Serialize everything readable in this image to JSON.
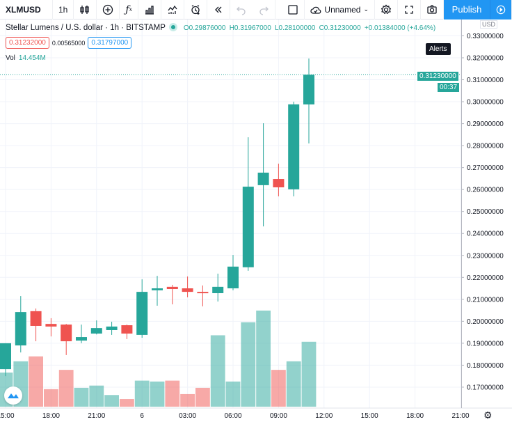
{
  "toolbar": {
    "symbol": "XLMUSD",
    "interval": "1h",
    "layout_name": "Unnamed",
    "publish_label": "Publish",
    "icons": [
      "bar-style-icon",
      "indicators-add-icon",
      "fx-icon",
      "financials-icon",
      "compare-icon",
      "alert-icon",
      "replay-icon",
      "undo-icon",
      "redo-icon",
      "layout-square-icon",
      "cloud-save-icon",
      "settings-icon",
      "fullscreen-icon",
      "camera-icon",
      "play-icon"
    ]
  },
  "legend": {
    "title": "Stellar Lumens / U.S. dollar · 1h · BITSTAMP",
    "open": "O0.29876000",
    "high": "H0.31967000",
    "low": "L0.28100000",
    "close": "C0.31230000",
    "change": "+0.01384000 (+4.64%)",
    "bid": "0.31232000",
    "spread": "0.00565000",
    "ask": "0.31797000",
    "vol_label": "Vol",
    "vol_value": "14.454M"
  },
  "price_axis": {
    "currency": "USD",
    "alerts_label": "Alerts",
    "last_price": "0.31230000",
    "countdown": "00:37"
  },
  "colors": {
    "up": "#26a69a",
    "down": "#ef5350",
    "accent": "#2196f3"
  },
  "chart_data": {
    "type": "candlestick",
    "interval": "1h",
    "ylim": [
      0.163,
      0.335
    ],
    "y_ticks": [
      0.33,
      0.32,
      0.31,
      0.3,
      0.29,
      0.28,
      0.27,
      0.26,
      0.25,
      0.24,
      0.23,
      0.22,
      0.21,
      0.2,
      0.19,
      0.18,
      0.17
    ],
    "x_tick_labels": [
      "15:00",
      "18:00",
      "21:00",
      "6",
      "03:00",
      "06:00",
      "09:00",
      "12:00",
      "15:00",
      "18:00",
      "21:00"
    ],
    "grid": true,
    "candles": [
      {
        "t": "15:00",
        "o": 0.1782,
        "h": 0.19,
        "l": 0.175,
        "c": 0.19,
        "v": 7.6
      },
      {
        "t": "16:00",
        "o": 0.189,
        "h": 0.2115,
        "l": 0.1858,
        "c": 0.2042,
        "v": 10.1
      },
      {
        "t": "17:00",
        "o": 0.2046,
        "h": 0.2058,
        "l": 0.1909,
        "c": 0.1979,
        "v": 11.2
      },
      {
        "t": "18:00",
        "o": 0.1988,
        "h": 0.2014,
        "l": 0.1931,
        "c": 0.1976,
        "v": 3.9
      },
      {
        "t": "19:00",
        "o": 0.1985,
        "h": 0.1988,
        "l": 0.1846,
        "c": 0.1909,
        "v": 8.2
      },
      {
        "t": "20:00",
        "o": 0.1912,
        "h": 0.1985,
        "l": 0.19,
        "c": 0.1928,
        "v": 4.2
      },
      {
        "t": "21:00",
        "o": 0.1944,
        "h": 0.2004,
        "l": 0.194,
        "c": 0.1969,
        "v": 4.7
      },
      {
        "t": "22:00",
        "o": 0.196,
        "h": 0.1998,
        "l": 0.1938,
        "c": 0.1976,
        "v": 2.6
      },
      {
        "t": "23:00",
        "o": 0.1982,
        "h": 0.1985,
        "l": 0.1919,
        "c": 0.1944,
        "v": 1.7
      },
      {
        "t": "00:00",
        "o": 0.1938,
        "h": 0.2191,
        "l": 0.1925,
        "c": 0.2134,
        "v": 5.8
      },
      {
        "t": "01:00",
        "o": 0.2141,
        "h": 0.2207,
        "l": 0.2071,
        "c": 0.215,
        "v": 5.6
      },
      {
        "t": "02:00",
        "o": 0.2157,
        "h": 0.2166,
        "l": 0.2077,
        "c": 0.2147,
        "v": 5.8
      },
      {
        "t": "03:00",
        "o": 0.215,
        "h": 0.2204,
        "l": 0.2109,
        "c": 0.2134,
        "v": 2.8
      },
      {
        "t": "04:00",
        "o": 0.2134,
        "h": 0.2163,
        "l": 0.2068,
        "c": 0.2128,
        "v": 4.2
      },
      {
        "t": "05:00",
        "o": 0.2128,
        "h": 0.2217,
        "l": 0.209,
        "c": 0.2157,
        "v": 15.9
      },
      {
        "t": "06:00",
        "o": 0.215,
        "h": 0.2302,
        "l": 0.2141,
        "c": 0.2249,
        "v": 5.6
      },
      {
        "t": "07:00",
        "o": 0.2246,
        "h": 0.2838,
        "l": 0.223,
        "c": 0.2613,
        "v": 18.8
      },
      {
        "t": "08:00",
        "o": 0.262,
        "h": 0.2902,
        "l": 0.2432,
        "c": 0.2677,
        "v": 21.4
      },
      {
        "t": "09:00",
        "o": 0.2648,
        "h": 0.2718,
        "l": 0.2569,
        "c": 0.261,
        "v": 8.2
      },
      {
        "t": "10:00",
        "o": 0.2601,
        "h": 0.3,
        "l": 0.2569,
        "c": 0.2988,
        "v": 10.1
      },
      {
        "t": "11:00",
        "o": 0.29876,
        "h": 0.31967,
        "l": 0.281,
        "c": 0.3123,
        "v": 14.454
      }
    ]
  }
}
